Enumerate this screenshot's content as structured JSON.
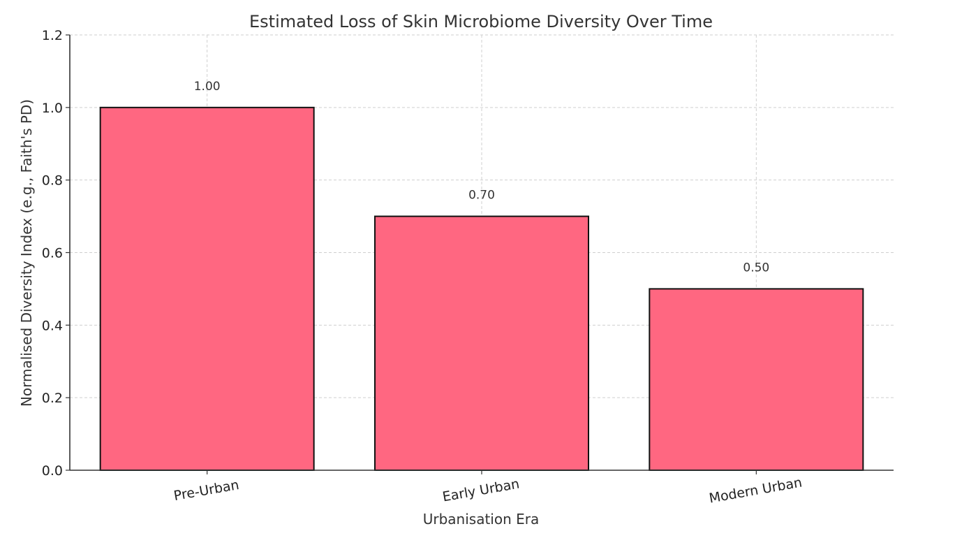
{
  "chart_data": {
    "type": "bar",
    "title": "Estimated Loss of Skin Microbiome Diversity Over Time",
    "xlabel": "Urbanisation Era",
    "ylabel": "Normalised Diversity Index (e.g., Faith's PD)",
    "categories": [
      "Pre-Urban",
      "Early Urban",
      "Modern Urban"
    ],
    "values": [
      1.0,
      0.7,
      0.5
    ],
    "value_labels": [
      "1.00",
      "0.70",
      "0.50"
    ],
    "ylim": [
      0,
      1.2
    ],
    "y_ticks": [
      0.0,
      0.2,
      0.4,
      0.6,
      0.8,
      1.0,
      1.2
    ],
    "y_tick_labels": [
      "0.0",
      "0.2",
      "0.4",
      "0.6",
      "0.8",
      "1.0",
      "1.2"
    ],
    "grid": true,
    "grid_style": "dashed",
    "x_tick_rotation": "slight",
    "bar_color": "#FF6781",
    "bar_edge_color": "#111111"
  }
}
